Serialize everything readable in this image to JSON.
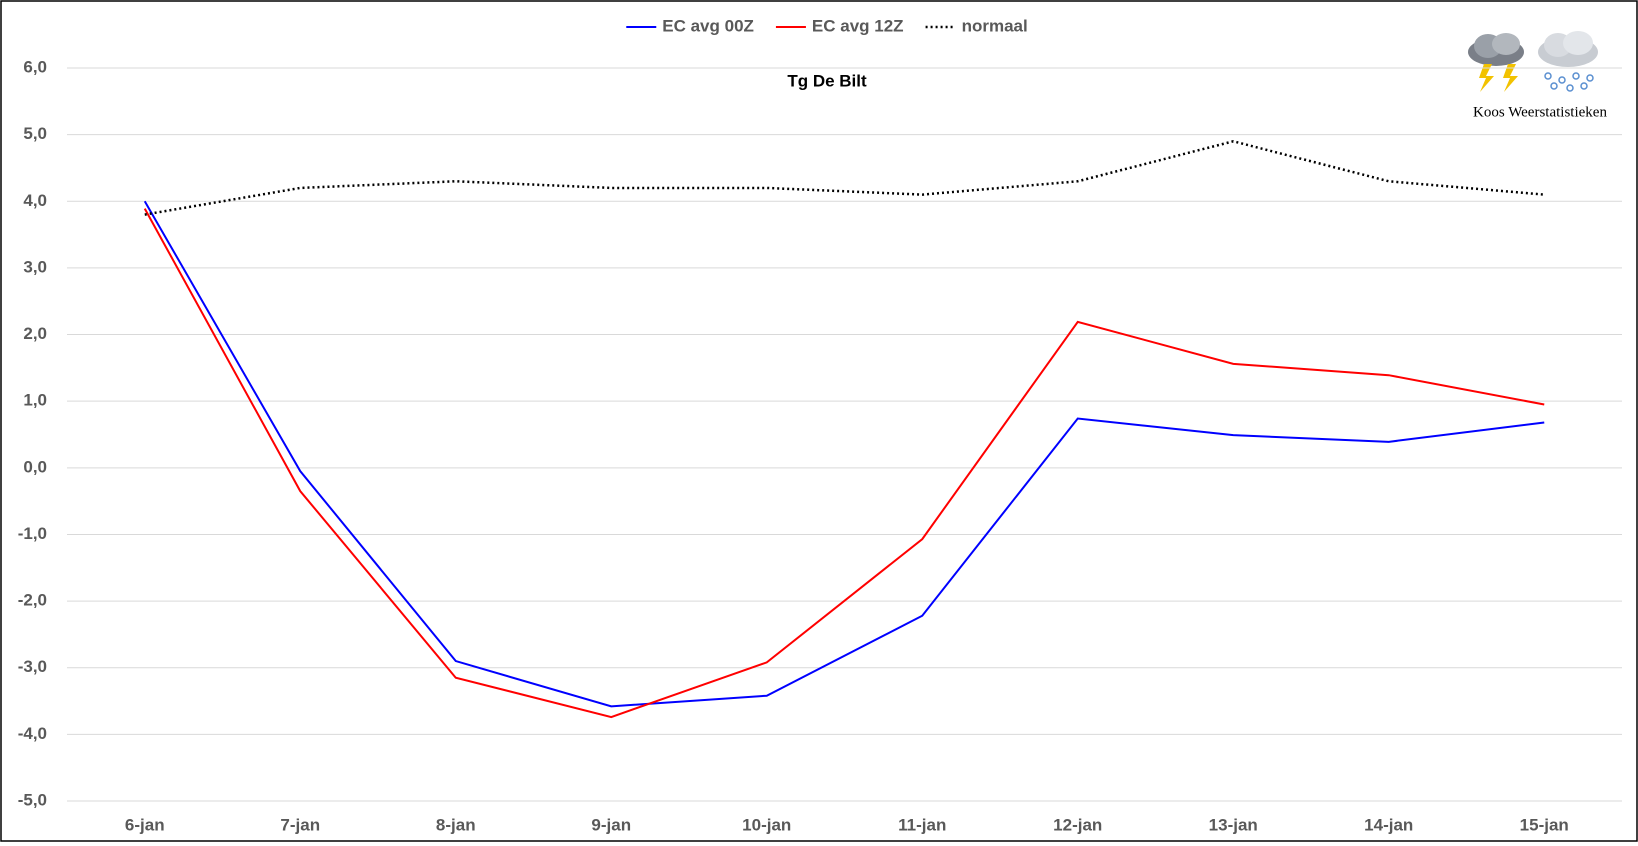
{
  "chart_data": {
    "type": "line",
    "title": "Tg De Bilt",
    "annotation": "Koos Weerstatistieken",
    "categories": [
      "6-jan",
      "7-jan",
      "8-jan",
      "9-jan",
      "10-jan",
      "11-jan",
      "12-jan",
      "13-jan",
      "14-jan",
      "15-jan"
    ],
    "series": [
      {
        "name": "EC avg 00Z",
        "color": "#0000ff",
        "values": [
          4.0,
          -0.05,
          -2.9,
          -3.58,
          -3.42,
          -2.22,
          0.74,
          0.49,
          0.39,
          0.68
        ]
      },
      {
        "name": "EC avg 12Z",
        "color": "#ff0000",
        "values": [
          3.89,
          -0.35,
          -3.15,
          -3.74,
          -2.92,
          -1.07,
          2.19,
          1.56,
          1.39,
          0.95
        ]
      },
      {
        "name": "normaal",
        "color": "#000000",
        "dashed": true,
        "values": [
          3.8,
          4.2,
          4.3,
          4.2,
          4.2,
          4.1,
          4.3,
          4.9,
          4.3,
          4.1
        ]
      }
    ],
    "ylim": [
      -5,
      6
    ],
    "yticks": [
      {
        "value": -5,
        "label": "-5,0"
      },
      {
        "value": -4,
        "label": "-4,0"
      },
      {
        "value": -3,
        "label": "-3,0"
      },
      {
        "value": -2,
        "label": "-2,0"
      },
      {
        "value": -1,
        "label": "-1,0"
      },
      {
        "value": 0,
        "label": "0,0"
      },
      {
        "value": 1,
        "label": "1,0"
      },
      {
        "value": 2,
        "label": "2,0"
      },
      {
        "value": 3,
        "label": "3,0"
      },
      {
        "value": 4,
        "label": "4,0"
      },
      {
        "value": 5,
        "label": "5,0"
      },
      {
        "value": 6,
        "label": "6,0"
      }
    ],
    "grid": true,
    "legend": "top"
  }
}
